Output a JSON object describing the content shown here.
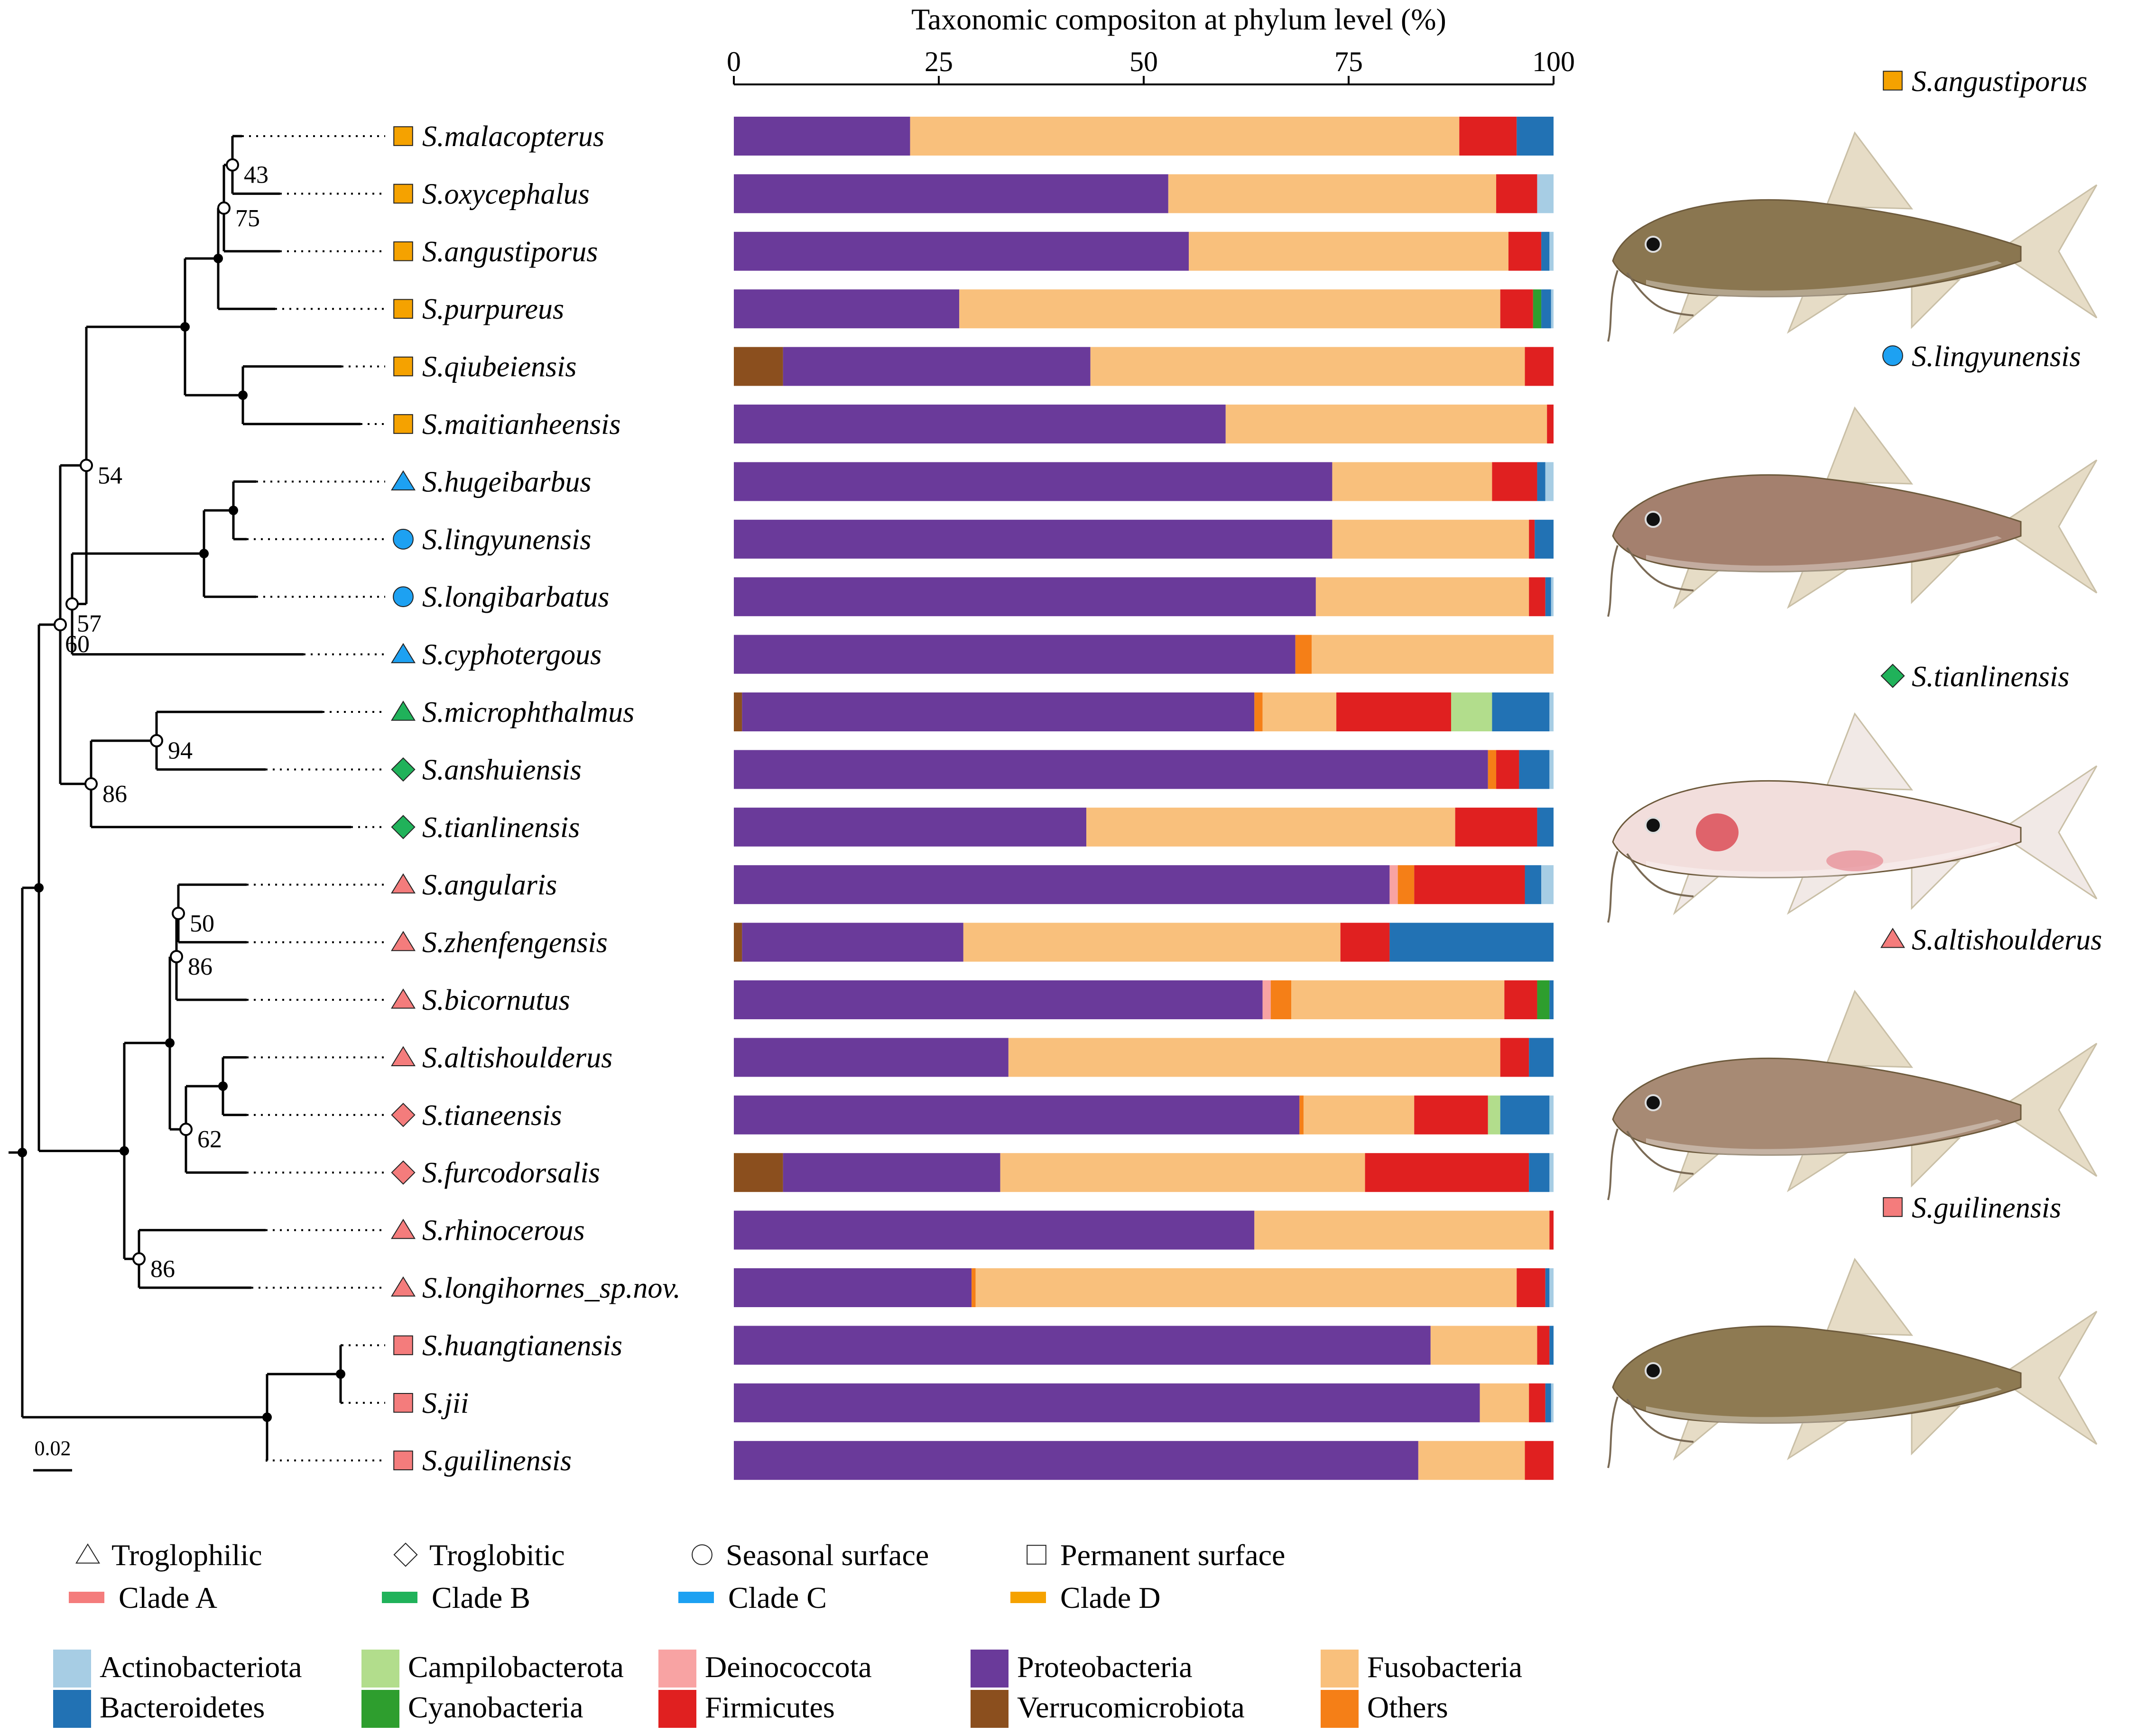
{
  "chart_data": {
    "type": "stacked-bar-horizontal",
    "title": "Taxonomic compositon at phylum level (%)",
    "xlim": [
      0,
      100
    ],
    "xticks": [
      0,
      25,
      50,
      75,
      100
    ],
    "scale_bar": "0.02",
    "phyla": [
      {
        "name": "Verrucomicrobiota",
        "color": "#8B4F1E"
      },
      {
        "name": "Proteobacteria",
        "color": "#6A3A9A"
      },
      {
        "name": "Deinococcota",
        "color": "#F8A3A3"
      },
      {
        "name": "Others",
        "color": "#F57F17"
      },
      {
        "name": "Fusobacteria",
        "color": "#F9C07C"
      },
      {
        "name": "Firmicutes",
        "color": "#E02020"
      },
      {
        "name": "Campilobacterota",
        "color": "#B2DD8C"
      },
      {
        "name": "Cyanobacteria",
        "color": "#2E9E2E"
      },
      {
        "name": "Bacteroidetes",
        "color": "#2272B4"
      },
      {
        "name": "Actinobacteriota",
        "color": "#A7CDE4"
      }
    ],
    "species": [
      {
        "name": "S.malacopterus",
        "habitat": "Permanent surface",
        "clade": "D",
        "values": [
          0,
          21.5,
          0,
          0,
          67,
          7,
          0,
          0,
          4.5,
          0
        ]
      },
      {
        "name": "S.oxycephalus",
        "habitat": "Permanent surface",
        "clade": "D",
        "values": [
          0,
          53,
          0,
          0,
          40,
          5,
          0,
          0,
          0,
          2
        ]
      },
      {
        "name": "S.angustiporus",
        "habitat": "Permanent surface",
        "clade": "D",
        "values": [
          0,
          55.5,
          0,
          0,
          39,
          4,
          0,
          0,
          1,
          0.5
        ]
      },
      {
        "name": "S.purpureus",
        "habitat": "Permanent surface",
        "clade": "D",
        "values": [
          0,
          27.5,
          0,
          0,
          66,
          4,
          0,
          1,
          1.2,
          0.3
        ]
      },
      {
        "name": "S.qiubeiensis",
        "habitat": "Permanent surface",
        "clade": "D",
        "values": [
          6,
          37.5,
          0,
          0,
          53,
          3.5,
          0,
          0,
          0,
          0
        ]
      },
      {
        "name": "S.maitianheensis",
        "habitat": "Permanent surface",
        "clade": "D",
        "values": [
          0,
          60,
          0,
          0,
          39.2,
          0.8,
          0,
          0,
          0,
          0
        ]
      },
      {
        "name": "S.hugeibarbus",
        "habitat": "Troglophilic",
        "clade": "C",
        "values": [
          0,
          73,
          0,
          0,
          19.5,
          5.5,
          0,
          0,
          1,
          1
        ]
      },
      {
        "name": "S.lingyunensis",
        "habitat": "Seasonal surface",
        "clade": "C",
        "values": [
          0,
          73,
          0,
          0,
          24,
          0.7,
          0,
          0,
          2.3,
          0
        ]
      },
      {
        "name": "S.longibarbatus",
        "habitat": "Seasonal surface",
        "clade": "C",
        "values": [
          0,
          71,
          0,
          0,
          26,
          2,
          0,
          0,
          0.7,
          0.3
        ]
      },
      {
        "name": "S.cyphotergous",
        "habitat": "Troglophilic",
        "clade": "C",
        "values": [
          0,
          68.5,
          0,
          2,
          29.5,
          0,
          0,
          0,
          0,
          0
        ]
      },
      {
        "name": "S.microphthalmus",
        "habitat": "Troglophilic",
        "clade": "B",
        "values": [
          1,
          62.5,
          0,
          1,
          9,
          14,
          5,
          0,
          7,
          0.5
        ]
      },
      {
        "name": "S.anshuiensis",
        "habitat": "Troglobitic",
        "clade": "B",
        "values": [
          0,
          92,
          0,
          1,
          0,
          2.8,
          0,
          0,
          3.7,
          0.5
        ]
      },
      {
        "name": "S.tianlinensis",
        "habitat": "Troglobitic",
        "clade": "B",
        "values": [
          0,
          43,
          0,
          0,
          45,
          10,
          0,
          0,
          2,
          0
        ]
      },
      {
        "name": "S.angularis",
        "habitat": "Troglophilic",
        "clade": "A",
        "values": [
          0,
          80,
          1,
          2,
          0,
          13.5,
          0,
          0,
          2,
          1.5
        ]
      },
      {
        "name": "S.zhenfengensis",
        "habitat": "Troglophilic",
        "clade": "A",
        "values": [
          1,
          27,
          0,
          0,
          46,
          6,
          0,
          0,
          20,
          0
        ]
      },
      {
        "name": "S.bicornutus",
        "habitat": "Troglophilic",
        "clade": "A",
        "values": [
          0,
          64.5,
          1,
          2.5,
          26,
          4,
          0,
          1.5,
          0.5,
          0
        ]
      },
      {
        "name": "S.altishoulderus",
        "habitat": "Troglophilic",
        "clade": "A",
        "values": [
          0,
          33.5,
          0,
          0,
          60,
          3.5,
          0,
          0,
          3,
          0
        ]
      },
      {
        "name": "S.tianeensis",
        "habitat": "Troglobitic",
        "clade": "A",
        "values": [
          0,
          69,
          0,
          0.5,
          13.5,
          9,
          1.5,
          0,
          6,
          0.5
        ]
      },
      {
        "name": "S.furcodorsalis",
        "habitat": "Troglobitic",
        "clade": "A",
        "values": [
          6,
          26.5,
          0,
          0,
          44.5,
          20,
          0,
          0,
          2.5,
          0.5
        ]
      },
      {
        "name": "S.rhinocerous",
        "habitat": "Troglophilic",
        "clade": "A",
        "values": [
          0,
          63.5,
          0,
          0,
          36,
          0.5,
          0,
          0,
          0,
          0
        ]
      },
      {
        "name": "S.longihornes_sp.nov.",
        "habitat": "Troglophilic",
        "clade": "A",
        "values": [
          0,
          29,
          0,
          0.5,
          66,
          3.5,
          0,
          0,
          0.5,
          0.5
        ]
      },
      {
        "name": "S.huangtianensis",
        "habitat": "Permanent surface",
        "clade": "A",
        "values": [
          0,
          85,
          0,
          0,
          13,
          1.5,
          0,
          0,
          0.5,
          0
        ]
      },
      {
        "name": "S.jii",
        "habitat": "Permanent surface",
        "clade": "A",
        "values": [
          0,
          91,
          0,
          0,
          6,
          2,
          0,
          0,
          0.7,
          0.3
        ]
      },
      {
        "name": "S.guilinensis",
        "habitat": "Permanent surface",
        "clade": "A",
        "values": [
          0,
          83.5,
          0,
          0,
          13,
          3.5,
          0,
          0,
          0,
          0
        ]
      }
    ],
    "bootstrap": [
      "43",
      "75",
      "54",
      "57",
      "60",
      "94",
      "86",
      "50",
      "86",
      "62",
      "86"
    ]
  },
  "fish_panels": [
    {
      "name": "S.angustiporus",
      "habitat": "Permanent surface",
      "clade": "D",
      "body_color": "#8A7650",
      "pigmented": true
    },
    {
      "name": "S.lingyunensis",
      "habitat": "Seasonal surface",
      "clade": "C",
      "body_color": "#A4806E",
      "pigmented": true
    },
    {
      "name": "S.tianlinensis",
      "habitat": "Troglobitic",
      "clade": "B",
      "body_color": "#F2DEDC",
      "pigmented": false
    },
    {
      "name": "S.altishoulderus",
      "habitat": "Troglophilic",
      "clade": "A",
      "body_color": "#A78A74",
      "pigmented": true
    },
    {
      "name": "S.guilinensis",
      "habitat": "Permanent surface",
      "clade": "A",
      "body_color": "#8E7A52",
      "pigmented": true
    }
  ],
  "legend": {
    "habitats": [
      {
        "label": "Troglophilic",
        "shape": "triangle"
      },
      {
        "label": "Troglobitic",
        "shape": "diamond"
      },
      {
        "label": "Seasonal surface",
        "shape": "circle"
      },
      {
        "label": "Permanent surface",
        "shape": "square"
      }
    ],
    "clades": [
      {
        "label": "Clade A",
        "color": "#F47C7C"
      },
      {
        "label": "Clade B",
        "color": "#20B25A"
      },
      {
        "label": "Clade C",
        "color": "#1DA1F2"
      },
      {
        "label": "Clade D",
        "color": "#F5A200"
      }
    ],
    "phyla_rows": [
      [
        "Actinobacteriota",
        "Campilobacterota",
        "Deinococcota",
        "Proteobacteria",
        "Fusobacteria"
      ],
      [
        "Bacteroidetes",
        "Cyanobacteria",
        "Firmicutes",
        "Verrucomicrobiota",
        "Others"
      ]
    ]
  }
}
